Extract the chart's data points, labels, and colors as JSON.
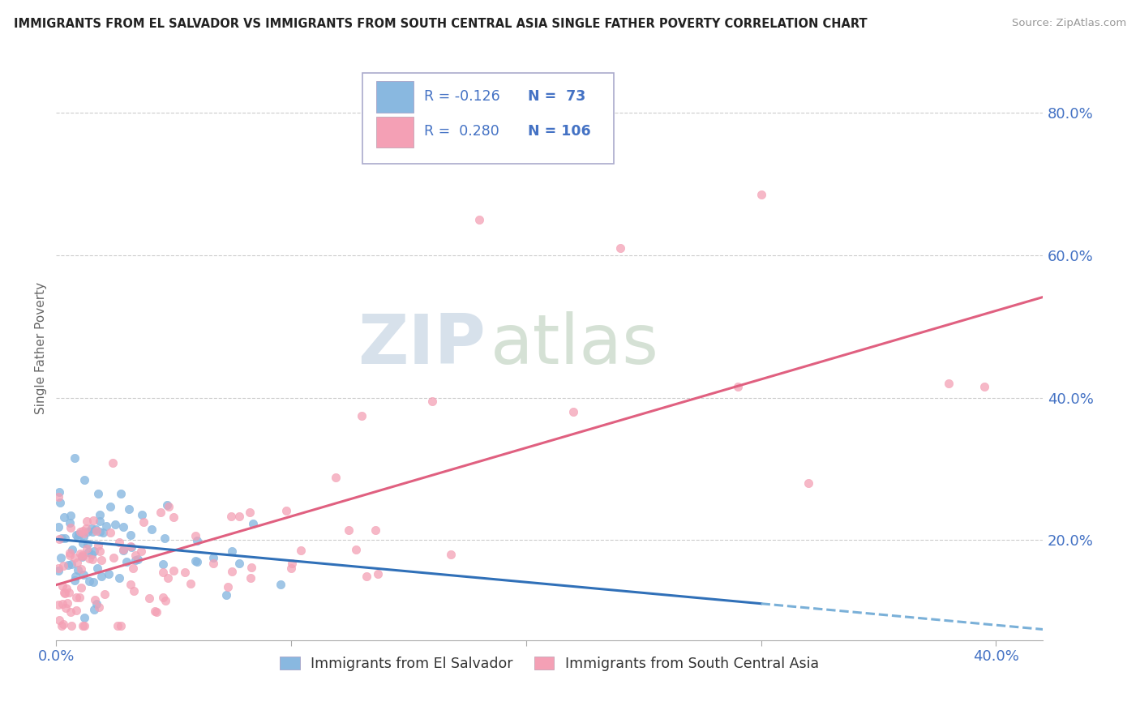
{
  "title": "IMMIGRANTS FROM EL SALVADOR VS IMMIGRANTS FROM SOUTH CENTRAL ASIA SINGLE FATHER POVERTY CORRELATION CHART",
  "source": "Source: ZipAtlas.com",
  "ylabel": "Single Father Poverty",
  "right_yticks": [
    0.2,
    0.4,
    0.6,
    0.8
  ],
  "right_yticklabels": [
    "20.0%",
    "40.0%",
    "60.0%",
    "80.0%"
  ],
  "xlim": [
    0.0,
    0.42
  ],
  "ylim": [
    0.06,
    0.88
  ],
  "legend_r1": "R = -0.126",
  "legend_n1": "N =  73",
  "legend_r2": "R =  0.280",
  "legend_n2": "N = 106",
  "color_blue": "#89b8e0",
  "color_pink": "#f4a0b5",
  "text_color": "#4472c4",
  "watermark_zip": "ZIP",
  "watermark_atlas": "atlas",
  "background_color": "#ffffff",
  "grid_color": "#cccccc"
}
